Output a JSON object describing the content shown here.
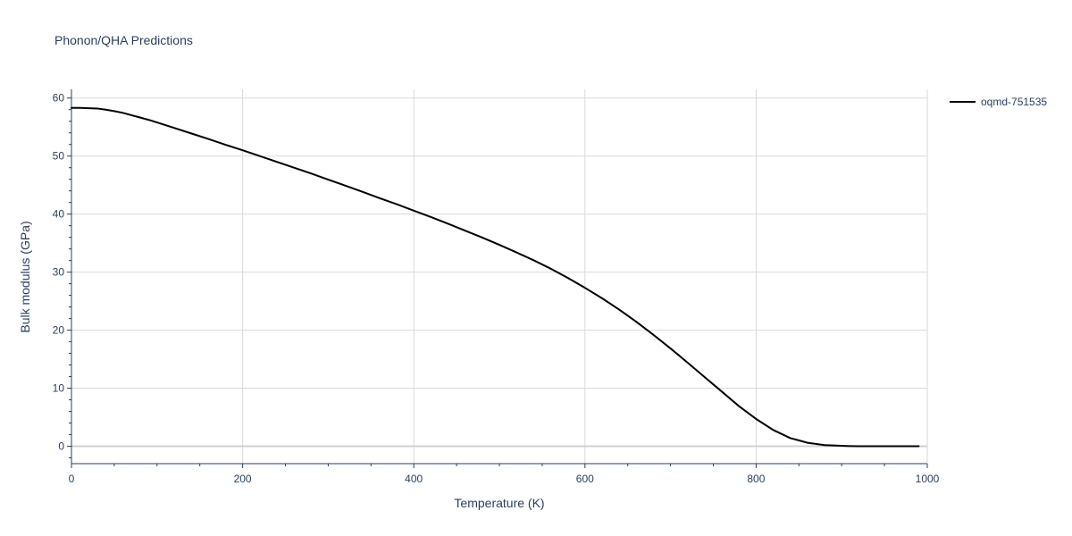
{
  "chart_data": {
    "type": "line",
    "title": "Phonon/QHA Predictions",
    "xlabel": "Temperature (K)",
    "ylabel": "Bulk modulus (GPa)",
    "xlim": [
      0,
      1000
    ],
    "ylim": [
      -3,
      61.5
    ],
    "x_ticks": [
      0,
      200,
      400,
      600,
      800,
      1000
    ],
    "y_ticks": [
      0,
      10,
      20,
      30,
      40,
      50,
      60
    ],
    "grid": true,
    "legend_position": "top-right",
    "series": [
      {
        "name": "oqmd-751535",
        "color": "#000000",
        "x": [
          0,
          10,
          20,
          30,
          40,
          50,
          60,
          70,
          80,
          90,
          100,
          120,
          140,
          160,
          180,
          200,
          220,
          240,
          260,
          280,
          300,
          320,
          340,
          360,
          380,
          400,
          420,
          440,
          460,
          480,
          500,
          520,
          540,
          560,
          580,
          600,
          620,
          640,
          660,
          680,
          700,
          720,
          740,
          760,
          780,
          800,
          820,
          840,
          860,
          880,
          900,
          910,
          920,
          930,
          940,
          950,
          960,
          970,
          980,
          990
        ],
        "y": [
          58.3,
          58.3,
          58.25,
          58.2,
          58.0,
          57.75,
          57.45,
          57.05,
          56.65,
          56.25,
          55.8,
          54.85,
          53.9,
          52.95,
          51.95,
          51.0,
          50.0,
          49.0,
          48.0,
          47.0,
          45.95,
          44.9,
          43.85,
          42.75,
          41.7,
          40.6,
          39.5,
          38.35,
          37.15,
          35.95,
          34.7,
          33.4,
          32.05,
          30.6,
          29.0,
          27.3,
          25.5,
          23.55,
          21.45,
          19.2,
          16.85,
          14.4,
          11.9,
          9.4,
          6.9,
          4.7,
          2.8,
          1.4,
          0.6,
          0.2,
          0.08,
          0.03,
          0.01,
          0.0,
          0.0,
          0.0,
          0.0,
          0.0,
          0.0,
          0.0
        ]
      }
    ]
  }
}
